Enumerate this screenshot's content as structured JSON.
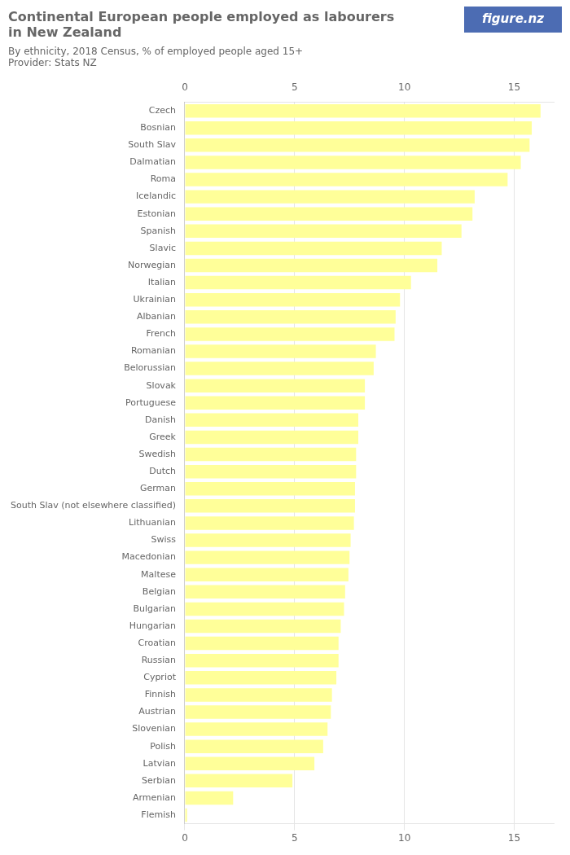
{
  "chart_data": {
    "type": "bar",
    "orientation": "horizontal",
    "title": [
      "Continental European people employed as labourers",
      "in New Zealand"
    ],
    "subtitle": "By ethnicity, 2018 Census, % of employed people aged 15+",
    "annotations": [
      "Provider: Stats NZ",
      "figure.nz"
    ],
    "categories": [
      "Czech",
      "Bosnian",
      "South Slav",
      "Dalmatian",
      "Roma",
      "Icelandic",
      "Estonian",
      "Spanish",
      "Slavic",
      "Norwegian",
      "Italian",
      "Ukrainian",
      "Albanian",
      "French",
      "Romanian",
      "Belorussian",
      "Slovak",
      "Portuguese",
      "Danish",
      "Greek",
      "Swedish",
      "Dutch",
      "German",
      "South Slav (not elsewhere classified)",
      "Lithuanian",
      "Swiss",
      "Macedonian",
      "Maltese",
      "Belgian",
      "Bulgarian",
      "Hungarian",
      "Croatian",
      "Russian",
      "Cypriot",
      "Finnish",
      "Austrian",
      "Slovenian",
      "Polish",
      "Latvian",
      "Serbian",
      "Armenian",
      "Flemish"
    ],
    "values": [
      16.2,
      15.8,
      15.7,
      15.3,
      14.7,
      13.2,
      13.1,
      12.6,
      11.7,
      11.5,
      10.3,
      9.8,
      9.6,
      9.55,
      8.7,
      8.6,
      8.2,
      8.2,
      7.9,
      7.9,
      7.8,
      7.8,
      7.75,
      7.75,
      7.7,
      7.55,
      7.5,
      7.45,
      7.3,
      7.25,
      7.1,
      7.0,
      7.0,
      6.9,
      6.7,
      6.65,
      6.5,
      6.3,
      5.9,
      4.9,
      2.2,
      0.1
    ],
    "color": "#FFFF99",
    "xlim": [
      0,
      16.8
    ],
    "xticks": [
      0,
      5,
      10,
      15
    ],
    "grid": true
  }
}
